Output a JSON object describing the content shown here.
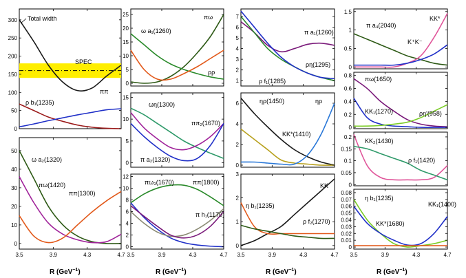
{
  "chart_data": {
    "type": "line",
    "x_range": [
      3.5,
      4.7
    ],
    "xticks": [
      "3.5",
      "3.9",
      "4.3",
      "4.7"
    ],
    "xlabel_main": "R (GeV",
    "xlabel_sup": "−1",
    "xlabel_end": ")",
    "colors": {
      "black": "#1a1a1a",
      "red": "#9b1b1b",
      "blue": "#2030c8",
      "green": "#2a8a2a",
      "darkgreen": "#2e5a16",
      "orange": "#e2591a",
      "teal": "#2f9a6a",
      "magenta": "#a0239a",
      "purple": "#7a1a7a",
      "olive": "#b8a11e",
      "sky": "#2a78d8",
      "pink": "#e0559a",
      "gray": "#8a8a73",
      "lime": "#7ccd28",
      "spec": "#ffee00"
    },
    "panels": [
      {
        "id": "p1",
        "col": 0,
        "row": "top",
        "ylim": [
          0,
          330
        ],
        "yticks": [
          0,
          50,
          100,
          150,
          200,
          250,
          300
        ],
        "band": {
          "low": 140,
          "high": 180,
          "line": 160,
          "label": "SPEC"
        },
        "series": [
          {
            "name": "Total width",
            "color": "black",
            "y": [
              300,
              240,
              175,
              128,
              105,
              112,
              145,
              175
            ]
          },
          {
            "name": "ρ b₁(1235)",
            "color": "red",
            "y": [
              68,
              50,
              32,
              20,
              10,
              4,
              1,
              0
            ]
          },
          {
            "name": "ππ",
            "color": "blue",
            "y": [
              5,
              13,
              22,
              30,
              38,
              45,
              52,
              55
            ]
          }
        ]
      },
      {
        "id": "p2",
        "col": 0,
        "row": "bottom",
        "ylim": [
          -3,
          57
        ],
        "yticks": [
          0,
          10,
          20,
          30,
          40,
          50
        ],
        "series": [
          {
            "name": "ω a₂(1320)",
            "color": "darkgreen",
            "y": [
              50,
              35,
              20,
              10,
              4,
              1,
              0,
              0
            ]
          },
          {
            "name": "πω(1420)",
            "color": "magenta",
            "y": [
              36,
              22,
              11,
              5,
              2,
              0.5,
              1,
              5
            ]
          },
          {
            "name": "ππ(1300)",
            "color": "orange",
            "y": [
              15,
              4,
              0.5,
              3,
              10,
              17,
              23,
              28
            ]
          }
        ]
      },
      {
        "id": "p3",
        "col": 1,
        "row": 0,
        "ylim": [
          -1,
          27
        ],
        "yticks": [
          0,
          5,
          10,
          15,
          20,
          25
        ],
        "series": [
          {
            "name": "πω",
            "color": "darkgreen",
            "y": [
              0.5,
              0,
              0.5,
              2.5,
              6,
              11,
              17,
              25
            ]
          },
          {
            "name": "ω a₁(1260)",
            "color": "green",
            "y": [
              18,
              14,
              10,
              7,
              5,
              3.5,
              2.3,
              1.5
            ]
          },
          {
            "name": "ρρ",
            "color": "orange",
            "y": [
              12,
              5,
              1.5,
              1.5,
              3.5,
              6,
              9,
              12
            ]
          }
        ]
      },
      {
        "id": "p4",
        "col": 1,
        "row": 1,
        "ylim": [
          -1,
          16
        ],
        "yticks": [
          0,
          5,
          10,
          15
        ],
        "series": [
          {
            "name": "ωη(1300)",
            "color": "teal",
            "y": [
              12.5,
              11,
              9,
              7,
              5,
              3.5,
              2.2,
              1
            ]
          },
          {
            "name": "ππ₂(1670)",
            "color": "magenta",
            "y": [
              11.5,
              8,
              5.5,
              3.5,
              3,
              4,
              6,
              9
            ]
          },
          {
            "name": "π a₂(1320)",
            "color": "blue",
            "y": [
              9,
              6,
              3.5,
              1.5,
              0.5,
              1,
              4,
              9
            ]
          }
        ]
      },
      {
        "id": "p5",
        "col": 1,
        "row": 2,
        "ylim": [
          -0.4,
          12.4
        ],
        "yticks": [
          0,
          2,
          4,
          6,
          8,
          10,
          12
        ],
        "series": [
          {
            "name": "ππ(1800)",
            "color": "green",
            "y": [
              7.5,
              9,
              10,
              10.5,
              10.5,
              9.8,
              8.5,
              7
            ]
          },
          {
            "name": "πω₃(1670)",
            "color": "blue",
            "y": [
              7.5,
              5,
              3,
              1.5,
              0.7,
              0.3,
              0.1,
              0
            ]
          },
          {
            "name": "π h₁(1170)",
            "color": "gray",
            "y": [
              6,
              4,
              2.5,
              1.8,
              2,
              3,
              4.5,
              6.5
            ]
          },
          {
            "name": "",
            "color": "purple",
            "y": [
              7,
              5.2,
              3.5,
              2,
              1.5,
              2,
              3.5,
              6
            ]
          }
        ]
      },
      {
        "id": "p6",
        "col": 2,
        "row": 0,
        "ylim": [
          0.5,
          7.7
        ],
        "yticks": [
          1,
          2,
          3,
          4,
          5,
          6,
          7
        ],
        "series": [
          {
            "name": "π a₁(1260)",
            "color": "purple",
            "y": [
              6.5,
              5.5,
              4.3,
              3.7,
              4,
              4.4,
              4.5,
              4.3
            ]
          },
          {
            "name": "ρη(1295)",
            "color": "green",
            "y": [
              7,
              5.5,
              4,
              3,
              2.3,
              1.7,
              1.3,
              1
            ]
          },
          {
            "name": "ρ f₁(1285)",
            "color": "blue",
            "y": [
              7.5,
              6,
              4.5,
              3.2,
              2.3,
              1.7,
              1.3,
              1.2
            ]
          }
        ]
      },
      {
        "id": "p7",
        "col": 2,
        "row": 1,
        "ylim": [
          -0.2,
          7.0
        ],
        "yticks": [
          0,
          2,
          4,
          6
        ],
        "series": [
          {
            "name": "ηρ(1450)",
            "color": "black",
            "y": [
              6.5,
              5,
              3.7,
              2.5,
              1.5,
              0.8,
              0.3,
              0
            ]
          },
          {
            "name": "KK*(1410)",
            "color": "olive",
            "y": [
              3.5,
              2.5,
              1.5,
              0.5,
              0.2,
              0.1,
              0,
              0
            ]
          },
          {
            "name": "ηρ",
            "color": "sky",
            "y": [
              0.3,
              0.3,
              0.2,
              0.1,
              0.1,
              1,
              3,
              6
            ]
          }
        ]
      },
      {
        "id": "p8",
        "col": 2,
        "row": 2,
        "ylim": [
          -0.15,
          3.0
        ],
        "yticks": [
          0,
          1,
          2,
          3
        ],
        "series": [
          {
            "name": "KK",
            "color": "black",
            "y": [
              0,
              0.2,
              0.5,
              0.8,
              1.3,
              1.8,
              2.3,
              2.8
            ]
          },
          {
            "name": "η b₁(1235)",
            "color": "orange",
            "y": [
              1.8,
              0.8,
              0.5,
              0.5,
              0.5,
              0.5,
              0.5,
              0.5
            ]
          },
          {
            "name": "ρ f₂(1270)",
            "color": "darkgreen",
            "y": [
              0.85,
              0.7,
              0.6,
              0.5,
              0.4,
              0.35,
              0.3,
              0.3
            ]
          }
        ]
      },
      {
        "id": "p9",
        "col": 3,
        "row": 0,
        "ylim": [
          -0.05,
          1.57
        ],
        "yticks": [
          0,
          0.5,
          1,
          1.5
        ],
        "series": [
          {
            "name": "π a₄(2040)",
            "color": "darkgreen",
            "y": [
              0.9,
              0.75,
              0.6,
              0.45,
              0.3,
              0.2,
              0.1,
              0.05
            ]
          },
          {
            "name": "KK*",
            "color": "pink",
            "y": [
              0,
              0,
              0,
              0,
              0.1,
              0.3,
              0.8,
              1.45
            ]
          },
          {
            "name": "K⁺K⁻",
            "color": "blue",
            "y": [
              0.05,
              0.05,
              0.05,
              0.05,
              0.1,
              0.2,
              0.35,
              0.6
            ]
          }
        ]
      },
      {
        "id": "p10",
        "col": 3,
        "row": 1,
        "ylim": [
          -0.02,
          0.85
        ],
        "yticks": [
          0,
          0.2,
          0.4,
          0.6,
          0.8
        ],
        "series": [
          {
            "name": "πω(1650)",
            "color": "purple",
            "y": [
              0.75,
              0.6,
              0.4,
              0.25,
              0.12,
              0.05,
              0.02,
              0.01
            ]
          },
          {
            "name": "KK₁(1270)",
            "color": "blue",
            "y": [
              0.45,
              0.15,
              0.05,
              0.02,
              0.01,
              0,
              0,
              0
            ]
          },
          {
            "name": "ρη'(958)",
            "color": "lime",
            "y": [
              0.02,
              0.02,
              0.03,
              0.05,
              0.08,
              0.15,
              0.25,
              0.35
            ]
          }
        ]
      },
      {
        "id": "p11",
        "col": 3,
        "row": 2,
        "ylim": [
          -0.005,
          0.22
        ],
        "yticks": [
          0,
          0.05,
          0.1,
          0.15,
          0.2
        ],
        "series": [
          {
            "name": "KK₂(1430)",
            "color": "pink",
            "y": [
              0.21,
              0.08,
              0.03,
              0.02,
              0.02,
              0.02,
              0.03,
              0.08
            ]
          },
          {
            "name": "ρ f₁(1420)",
            "color": "teal",
            "y": [
              0.16,
              0.15,
              0.13,
              0.11,
              0.09,
              0.06,
              0.04,
              0.02
            ]
          }
        ]
      },
      {
        "id": "p12",
        "col": 3,
        "row": 3,
        "ylim": [
          -0.003,
          0.085
        ],
        "yticks": [
          0,
          0.01,
          0.02,
          0.03,
          0.04,
          0.05,
          0.06,
          0.07,
          0.08
        ],
        "series": [
          {
            "name": "η b₁(1235)",
            "color": "lime",
            "y": [
              0.07,
              0.04,
              0.02,
              0.005,
              0,
              0.002,
              0.005,
              0.01
            ]
          },
          {
            "name": "KK₁(1400)",
            "color": "blue",
            "y": [
              0.06,
              0.035,
              0.02,
              0.01,
              0.003,
              0.005,
              0.02,
              0.045
            ]
          },
          {
            "name": "KK*(1680)",
            "color": "orange",
            "y": [
              0.002,
              0.002,
              0.002,
              0.002,
              0.002,
              0.002,
              0.002,
              0.002
            ]
          }
        ]
      }
    ]
  }
}
